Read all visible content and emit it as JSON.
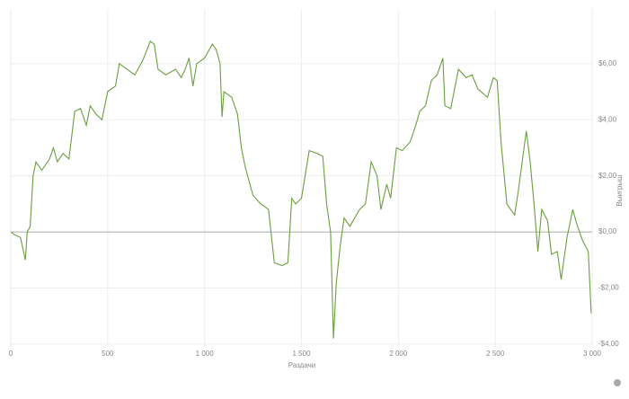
{
  "chart_data": {
    "type": "line",
    "x_label": "Раздачи",
    "y_label": "Выигрыш",
    "xlim": [
      0,
      3000
    ],
    "ylim": [
      -4.1,
      7.95
    ],
    "xticks": [
      0,
      500,
      {
        "value": 1000,
        "label": "1 000"
      },
      {
        "value": 1500,
        "label": "1 500"
      },
      {
        "value": 2000,
        "label": "2 000"
      },
      {
        "value": 2500,
        "label": "2 500"
      },
      {
        "value": 3000,
        "label": "3 000"
      }
    ],
    "yticks": [
      {
        "value": -4,
        "label": "-$4,00"
      },
      {
        "value": -2,
        "label": "-$2,00"
      },
      {
        "value": 0,
        "label": "$0,00"
      },
      {
        "value": 2,
        "label": "$2,00"
      },
      {
        "value": 4,
        "label": "$4,00"
      },
      {
        "value": 6,
        "label": "$6,00"
      }
    ],
    "grid": true,
    "series": [
      {
        "color": "#6a9e3f",
        "x": [
          0,
          20,
          50,
          75,
          85,
          100,
          115,
          130,
          160,
          200,
          220,
          240,
          270,
          300,
          330,
          360,
          390,
          410,
          440,
          470,
          500,
          540,
          560,
          600,
          640,
          680,
          720,
          740,
          760,
          800,
          850,
          880,
          900,
          920,
          940,
          960,
          1000,
          1040,
          1060,
          1080,
          1090,
          1100,
          1140,
          1170,
          1190,
          1210,
          1250,
          1290,
          1330,
          1360,
          1400,
          1430,
          1450,
          1470,
          1500,
          1540,
          1580,
          1610,
          1630,
          1650,
          1665,
          1680,
          1700,
          1720,
          1750,
          1800,
          1830,
          1860,
          1890,
          1910,
          1940,
          1960,
          1990,
          2020,
          2060,
          2090,
          2110,
          2140,
          2170,
          2200,
          2230,
          2240,
          2270,
          2310,
          2350,
          2380,
          2410,
          2460,
          2490,
          2510,
          2530,
          2560,
          2600,
          2620,
          2660,
          2680,
          2700,
          2720,
          2740,
          2770,
          2790,
          2820,
          2840,
          2870,
          2900,
          2920,
          2950,
          2980,
          2995
        ],
        "values": [
          0,
          -0.1,
          -0.2,
          -1.0,
          0,
          0.2,
          2.0,
          2.5,
          2.2,
          2.6,
          3.0,
          2.5,
          2.8,
          2.6,
          4.3,
          4.4,
          3.8,
          4.5,
          4.2,
          4.0,
          5.0,
          5.2,
          6.0,
          5.8,
          5.6,
          6.1,
          6.8,
          6.7,
          5.8,
          5.6,
          5.8,
          5.5,
          5.8,
          6.2,
          5.2,
          6.0,
          6.2,
          6.7,
          6.5,
          6.0,
          4.1,
          5.0,
          4.8,
          4.2,
          3.0,
          2.3,
          1.3,
          1.0,
          0.8,
          -1.1,
          -1.2,
          -1.1,
          1.2,
          1.0,
          1.2,
          2.9,
          2.8,
          2.7,
          1.0,
          0,
          -3.8,
          -1.8,
          -0.5,
          0.5,
          0.2,
          0.8,
          1.0,
          2.5,
          2.0,
          0.8,
          1.7,
          1.2,
          3.0,
          2.9,
          3.2,
          3.8,
          4.3,
          4.5,
          5.4,
          5.6,
          6.2,
          4.5,
          4.4,
          5.8,
          5.5,
          5.6,
          5.1,
          4.8,
          5.5,
          5.4,
          3.2,
          1.0,
          0.6,
          1.5,
          3.6,
          2.5,
          1.0,
          -0.7,
          0.8,
          0.4,
          -0.8,
          -0.7,
          -1.7,
          -0.2,
          0.8,
          0.3,
          -0.3,
          -0.7,
          -2.9
        ]
      }
    ]
  }
}
